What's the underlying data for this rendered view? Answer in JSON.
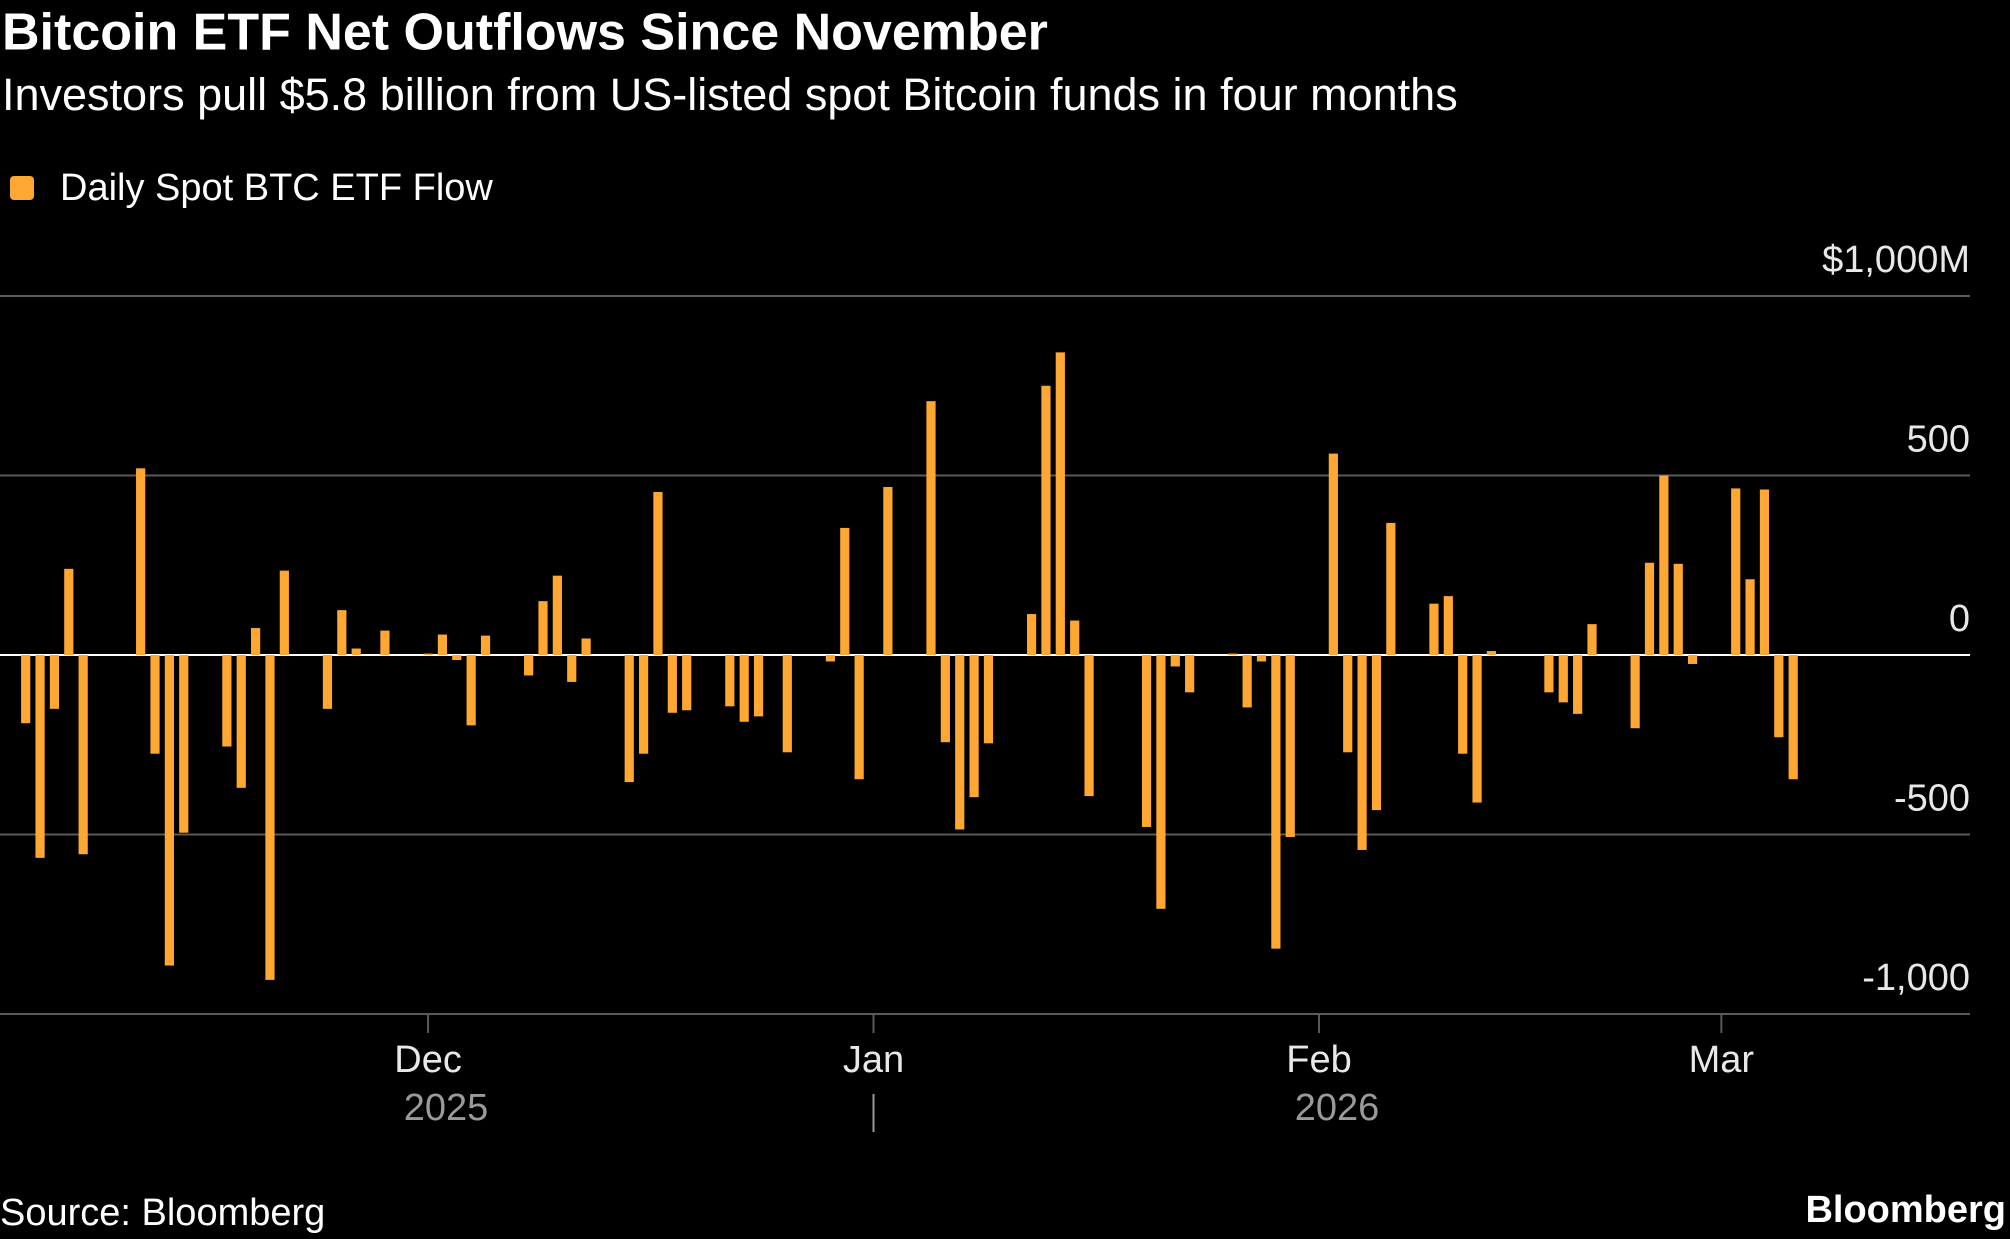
{
  "chart_data": {
    "type": "bar",
    "title": "Bitcoin ETF Net Outflows Since November",
    "subtitle": "Investors pull $5.8 billion from US-listed spot Bitcoin funds in four months",
    "source": "Source: Bloomberg",
    "brand": "Bloomberg",
    "categories": [
      null,
      null,
      null,
      null,
      null,
      null,
      null,
      null,
      null,
      null,
      null,
      null,
      null,
      null,
      null,
      null,
      null,
      null,
      null,
      null,
      null,
      null,
      null,
      null,
      null,
      null,
      null,
      null,
      "Dec",
      null,
      null,
      null,
      null,
      null,
      null,
      null,
      null,
      null,
      null,
      null,
      null,
      null,
      null,
      null,
      null,
      null,
      null,
      null,
      null,
      null,
      null,
      null,
      null,
      null,
      null,
      null,
      null,
      null,
      null,
      "Jan",
      null,
      null,
      null,
      null,
      null,
      null,
      null,
      null,
      null,
      null,
      null,
      null,
      null,
      null,
      null,
      null,
      null,
      null,
      null,
      null,
      null,
      null,
      null,
      null,
      null,
      null,
      null,
      null,
      null,
      null,
      "Feb",
      null,
      null,
      null,
      null,
      null,
      null,
      null,
      null,
      null,
      null,
      null,
      null,
      null,
      null,
      null,
      null,
      null,
      null,
      null,
      null,
      null,
      null,
      null,
      null,
      null,
      null,
      null,
      "Mar",
      null,
      null,
      null,
      null,
      null
    ],
    "category_years": [
      null,
      null,
      null,
      null,
      null,
      null,
      null,
      null,
      null,
      null,
      null,
      null,
      null,
      null,
      null,
      null,
      null,
      null,
      null,
      null,
      null,
      null,
      null,
      null,
      null,
      null,
      null,
      null,
      "2025",
      null,
      null,
      null,
      null,
      null,
      null,
      null,
      null,
      null,
      null,
      null,
      null,
      null,
      null,
      null,
      null,
      null,
      null,
      null,
      null,
      null,
      null,
      null,
      null,
      null,
      null,
      null,
      null,
      null,
      null,
      null,
      null,
      null,
      null,
      null,
      null,
      null,
      null,
      null,
      null,
      null,
      null,
      null,
      null,
      null,
      null,
      null,
      null,
      null,
      null,
      null,
      null,
      null,
      null,
      null,
      null,
      null,
      null,
      null,
      null,
      null,
      "2026",
      null,
      null,
      null,
      null,
      null,
      null,
      null,
      null,
      null,
      null,
      null,
      null,
      null,
      null,
      null,
      null,
      null,
      null,
      null,
      null,
      null,
      null,
      null,
      null,
      null,
      null,
      null,
      null,
      null,
      null,
      null,
      null,
      null
    ],
    "series": [
      {
        "name": "Daily Spot BTC ETF Flow",
        "color": "#ffa733",
        "values": [
          -190,
          -565,
          -150,
          240,
          -555,
          null,
          null,
          null,
          520,
          -275,
          -865,
          -495,
          null,
          null,
          -255,
          -370,
          75,
          -905,
          235,
          null,
          null,
          -150,
          125,
          18,
          null,
          68,
          null,
          null,
          4,
          57,
          -14,
          -196,
          54,
          null,
          null,
          -57,
          150,
          221,
          -75,
          46,
          null,
          null,
          -354,
          -275,
          454,
          -161,
          -154,
          null,
          null,
          -143,
          -186,
          -171,
          null,
          -271,
          null,
          null,
          -18,
          354,
          -346,
          null,
          468,
          null,
          null,
          707,
          -243,
          -486,
          -396,
          -246,
          null,
          null,
          114,
          750,
          843,
          96,
          -393,
          null,
          null,
          null,
          -479,
          -707,
          -32,
          -104,
          null,
          null,
          4,
          -146,
          -18,
          -818,
          -507,
          null,
          null,
          561,
          -271,
          -543,
          -432,
          368,
          null,
          null,
          143,
          164,
          -275,
          -411,
          11,
          null,
          null,
          null,
          -104,
          -132,
          -164,
          86,
          null,
          null,
          -204,
          257,
          500,
          254,
          -25,
          null,
          null,
          464,
          211,
          461,
          -229,
          -346
        ]
      }
    ],
    "ylim": [
      -1000,
      1000
    ],
    "yticks": [
      {
        "value": -1000,
        "label": "-1,000"
      },
      -500,
      0,
      500,
      {
        "value": 1000,
        "label": "$1,000M"
      }
    ],
    "grid": true
  }
}
